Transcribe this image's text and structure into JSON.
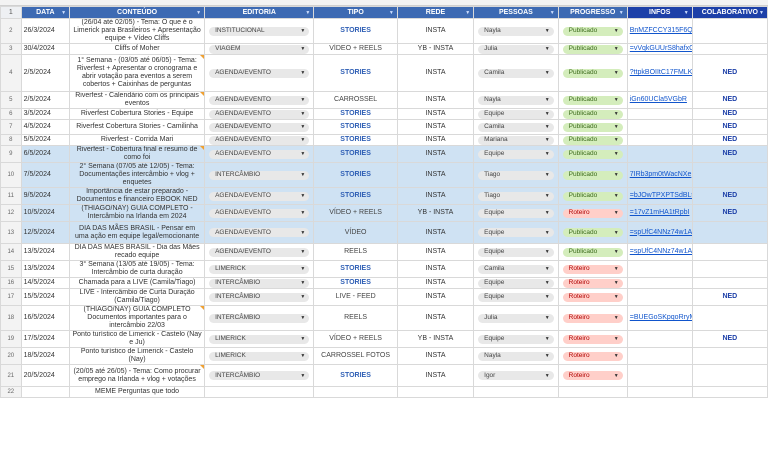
{
  "headers": {
    "row_num": "1",
    "data": "DATA",
    "conteudo": "CONTEÚDO",
    "editoria": "EDITORIA",
    "tipo": "TIPO",
    "rede": "REDE",
    "pessoas": "PESSOAS",
    "progresso": "PROGRESSO",
    "infos": "INFOS",
    "colaborativo": "COLABORATIVO"
  },
  "colors": {
    "header": "#3d6ab3",
    "header_dark": "#1d40a8",
    "row_blue": "#cfe2f3",
    "status_published": "#d4edbc",
    "status_draft": "#ffcfc9"
  },
  "rows": [
    {
      "num": "2",
      "date": "26/3/2024",
      "content": "(26/04 até 02/05) - Tema: O que é o Limerick para Brasileiros + Apresentação equipe + Vídeo Cliffs",
      "editoria": "INSTITUCIONAL",
      "tipo": "STORIES",
      "rede": "INSTA",
      "pessoa": "Nayla",
      "progresso": "Publicado",
      "info": "BnMZFCCY315F6Q",
      "colab": ""
    },
    {
      "num": "3",
      "date": "30/4/2024",
      "content": "Cliffs of Moher",
      "editoria": "VIAGEM",
      "tipo": "VÍDEO + REELS",
      "rede": "YB - INSTA",
      "pessoa": "Julia",
      "progresso": "Publicado",
      "info": "=vVqkGUUrS8hafxG",
      "colab": ""
    },
    {
      "num": "4",
      "date": "2/5/2024",
      "content": "1° Semana - (03/05 até 06/05) - Tema: Riverfest + Apresentar o cronograma e abrir votação para eventos a serem cobertos + Caixinhas de perguntas",
      "editoria": "AGENDA/EVENTO",
      "tipo": "STORIES",
      "rede": "INSTA",
      "pessoa": "Camila",
      "progresso": "Publicado",
      "info": "?ttpkBOIItC17FMLK",
      "colab": "NED"
    },
    {
      "num": "5",
      "date": "2/5/2024",
      "content": "Riverfest - Calendário com os principais eventos",
      "editoria": "AGENDA/EVENTO",
      "tipo": "CARROSSEL",
      "rede": "INSTA",
      "pessoa": "Nayla",
      "progresso": "Publicado",
      "info": "iGn60UCla5VGbR",
      "colab": "NED"
    },
    {
      "num": "6",
      "date": "3/5/2024",
      "content": "Riverfest Cobertura Stories - Equipe",
      "editoria": "AGENDA/EVENTO",
      "tipo": "STORIES",
      "rede": "INSTA",
      "pessoa": "Equipe",
      "progresso": "Publicado",
      "info": "",
      "colab": "NED"
    },
    {
      "num": "7",
      "date": "4/5/2024",
      "content": "Riverfest Cobertura Stories - Camilinha",
      "editoria": "AGENDA/EVENTO",
      "tipo": "STORIES",
      "rede": "INSTA",
      "pessoa": "Camila",
      "progresso": "Publicado",
      "info": "",
      "colab": "NED"
    },
    {
      "num": "8",
      "date": "5/5/2024",
      "content": "Riverfest - Corrida Mari",
      "editoria": "AGENDA/EVENTO",
      "tipo": "STORIES",
      "rede": "INSTA",
      "pessoa": "Mariana",
      "progresso": "Publicado",
      "info": "",
      "colab": "NED"
    },
    {
      "num": "9",
      "date": "6/5/2024",
      "content": "Riverfest - Cobertura final e resumo de como foi",
      "editoria": "AGENDA/EVENTO",
      "tipo": "STORIES",
      "rede": "INSTA",
      "pessoa": "Equipe",
      "progresso": "Publicado",
      "info": "",
      "colab": "NED"
    },
    {
      "num": "10",
      "date": "7/5/2024",
      "content": "2° Semana (07/05 até 12/05) - Tema: Documentações intercâmbio + vlog + enquetes",
      "editoria": "INTERCÂMBIO",
      "tipo": "STORIES",
      "rede": "INSTA",
      "pessoa": "Tiago",
      "progresso": "Publicado",
      "info": "7IRb3pm0tWacNXe",
      "colab": ""
    },
    {
      "num": "11",
      "date": "9/5/2024",
      "content": "Importância de estar preparado - Documentos e financeiro EBOOK NED",
      "editoria": "AGENDA/EVENTO",
      "tipo": "STORIES",
      "rede": "INSTA",
      "pessoa": "Tiago",
      "progresso": "Publicado",
      "info": "=bJOwTPXPTSdBLt",
      "colab": "NED"
    },
    {
      "num": "12",
      "date": "10/5/2024",
      "content": "(THIAGO/NAY) GUIA COMPLETO - Intercâmbio na Irlanda em 2024",
      "editoria": "AGENDA/EVENTO",
      "tipo": "VÍDEO + REELS",
      "rede": "YB - INSTA",
      "pessoa": "Equipe",
      "progresso": "Roteiro",
      "info": "=17vZ1mHA1tRpbI",
      "colab": "NED"
    },
    {
      "num": "13",
      "date": "12/5/2024",
      "content": "DIA DAS MÃES BRASIL - Pensar em uma ação em equipe legal/emocionante",
      "editoria": "AGENDA/EVENTO",
      "tipo": "VÍDEO",
      "rede": "INSTA",
      "pessoa": "Equipe",
      "progresso": "Publicado",
      "info": "=spUfC4NNz74w1A",
      "colab": ""
    },
    {
      "num": "14",
      "date": "13/5/2024",
      "content": "DIA DAS MÃES BRASIL - Dia das Mães recado equipe",
      "editoria": "AGENDA/EVENTO",
      "tipo": "REELS",
      "rede": "INSTA",
      "pessoa": "Equipe",
      "progresso": "Publicado",
      "info": "=spUfC4NNz74w1A",
      "colab": ""
    },
    {
      "num": "15",
      "date": "13/5/2024",
      "content": "3° Semana (13/05 até 19/05) - Tema: Intercâmbio de curta duração",
      "editoria": "LIMERICK",
      "tipo": "STORIES",
      "rede": "INSTA",
      "pessoa": "Camila",
      "progresso": "Roteiro",
      "info": "",
      "colab": ""
    },
    {
      "num": "16",
      "date": "14/5/2024",
      "content": "Chamada para a LIVE (Camila/Tiago)",
      "editoria": "INTERCÂMBIO",
      "tipo": "STORIES",
      "rede": "INSTA",
      "pessoa": "Equipe",
      "progresso": "Roteiro",
      "info": "",
      "colab": ""
    },
    {
      "num": "17",
      "date": "15/5/2024",
      "content": "LIVE - Intercâmbio de Curta Duração (Camila/Tiago)",
      "editoria": "INTERCÂMBIO",
      "tipo": "LIVE - FEED",
      "rede": "INSTA",
      "pessoa": "Equipe",
      "progresso": "Roteiro",
      "info": "",
      "colab": "NED"
    },
    {
      "num": "18",
      "date": "16/5/2024",
      "content": "(THIAGO/NAY) GUIA COMPLETO Documentos importantes para o intercâmbio 22/03",
      "editoria": "INTERCÂMBIO",
      "tipo": "REELS",
      "rede": "INSTA",
      "pessoa": "Julia",
      "progresso": "Roteiro",
      "info": "=BUEGoSKpqoRryM",
      "colab": ""
    },
    {
      "num": "19",
      "date": "17/5/2024",
      "content": "Ponto turístico de Limerick - Castelo (Nay e Ju)",
      "editoria": "LIMERICK",
      "tipo": "VÍDEO + REELS",
      "rede": "YB - INSTA",
      "pessoa": "Equipe",
      "progresso": "Roteiro",
      "info": "",
      "colab": "NED"
    },
    {
      "num": "20",
      "date": "18/5/2024",
      "content": "Ponto turístico de Limerick - Castelo (Nay)",
      "editoria": "LIMERICK",
      "tipo": "CARROSSEL FOTOS",
      "rede": "INSTA",
      "pessoa": "Nayla",
      "progresso": "Roteiro",
      "info": "",
      "colab": ""
    },
    {
      "num": "21",
      "date": "20/5/2024",
      "content": "(20/05 até 26/05) - Tema: Como procurar emprego na Irlanda + vlog + votações",
      "editoria": "INTERCÂMBIO",
      "tipo": "STORIES",
      "rede": "INSTA",
      "pessoa": "Igor",
      "progresso": "Roteiro",
      "info": "",
      "colab": ""
    },
    {
      "num": "22",
      "date": "",
      "content": "MEME Perguntas que todo",
      "editoria": "",
      "tipo": "",
      "rede": "",
      "pessoa": "",
      "progresso": "",
      "info": "",
      "colab": ""
    }
  ]
}
